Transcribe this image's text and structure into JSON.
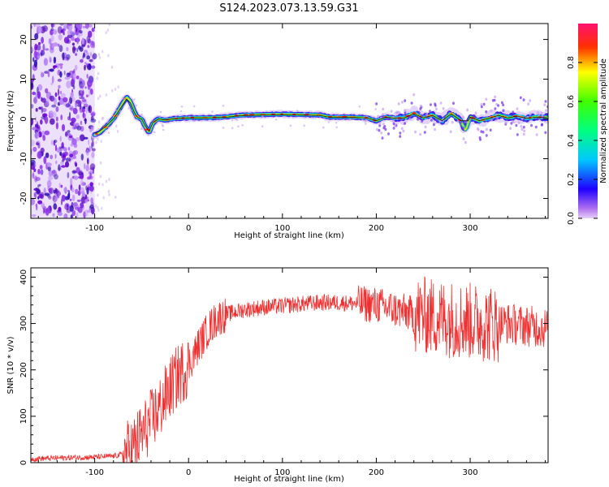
{
  "title": "S124.2023.073.13.59.G31",
  "colors": {
    "snr_line": "#f03030",
    "frequency_trend_line": "#000000"
  },
  "chart_data": [
    {
      "type": "heatmap",
      "xlabel": "Height of straight line (km)",
      "ylabel": "Frequency (Hz)",
      "xlim": [
        -168,
        383
      ],
      "ylim": [
        -25,
        24
      ],
      "xticks": [
        -100,
        0,
        100,
        200,
        300
      ],
      "yticks": [
        -20,
        -10,
        0,
        10,
        20
      ],
      "colorbar": {
        "label": "Normalized spectral amplitude",
        "range": [
          0,
          1
        ],
        "ticks": [
          0.0,
          0.2,
          0.4,
          0.6,
          0.8
        ],
        "colormap": "rainbow"
      },
      "ridge": {
        "x": [
          -100,
          -95,
          -88,
          -80,
          -75,
          -70,
          -66,
          -62,
          -58,
          -55,
          -50,
          -46,
          -42,
          -38,
          -32,
          -25,
          -15,
          0,
          20,
          40,
          50,
          60,
          80,
          100,
          120,
          140,
          150,
          170,
          190,
          200,
          210,
          220,
          230,
          240,
          250,
          260,
          270,
          280,
          290,
          295,
          300,
          310,
          320,
          330,
          340,
          350,
          360,
          370,
          383
        ],
        "y": [
          -4,
          -3.5,
          -2,
          0,
          2,
          4,
          5.5,
          4.5,
          2,
          0.5,
          0,
          -2,
          -3.5,
          -1,
          0,
          -0.3,
          0.1,
          0.3,
          0.3,
          0.5,
          0.8,
          1.0,
          1.1,
          1.2,
          1.1,
          1.0,
          0.5,
          0.5,
          0.3,
          -0.5,
          0.5,
          0.2,
          0.3,
          1.5,
          0.3,
          1.0,
          -0.5,
          1.5,
          -0.5,
          -3,
          0.5,
          -0.5,
          0.2,
          1.0,
          0.3,
          0.8,
          0.2,
          0.5,
          0.4
        ]
      },
      "noise_region_xlim": [
        -168,
        -100
      ]
    },
    {
      "type": "line",
      "xlabel": "Height of straight line (km)",
      "ylabel": "SNR (10 * v/v)",
      "xlim": [
        -168,
        383
      ],
      "ylim": [
        0,
        420
      ],
      "xticks": [
        -100,
        0,
        100,
        200,
        300
      ],
      "yticks": [
        0,
        100,
        200,
        300,
        400
      ],
      "series": [
        {
          "x": [
            -168,
            -140,
            -100,
            -80,
            -70,
            -60,
            -50,
            -40,
            -30,
            -20,
            -10,
            0,
            10,
            20,
            30,
            40,
            60,
            80,
            100,
            120,
            140,
            160,
            180,
            200,
            220,
            240,
            260,
            280,
            300,
            320,
            340,
            360,
            383
          ],
          "y": [
            8,
            10,
            12,
            14,
            18,
            30,
            60,
            90,
            120,
            160,
            190,
            210,
            250,
            285,
            310,
            320,
            330,
            335,
            338,
            342,
            345,
            345,
            343,
            340,
            330,
            320,
            315,
            310,
            305,
            300,
            300,
            295,
            290
          ]
        }
      ]
    }
  ]
}
